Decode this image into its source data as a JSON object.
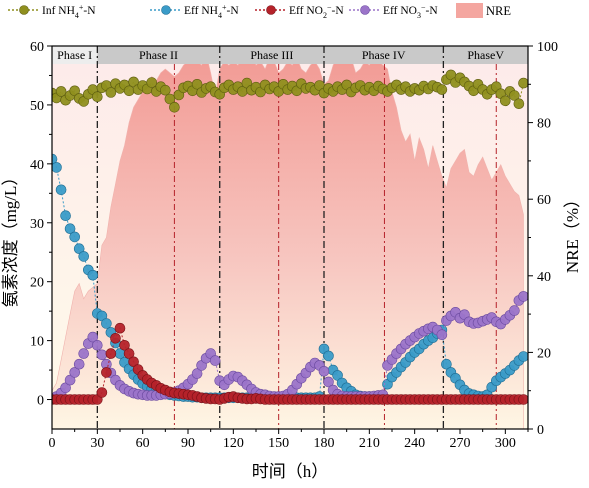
{
  "chart_data": {
    "type": "line",
    "xlabel": "时间（h）",
    "ylabel_left": "氨素浓度（mg/L）",
    "ylabel_right": "NRE（%）",
    "xlim": [
      0,
      315
    ],
    "ylim_left": [
      -5,
      60
    ],
    "ylim_right": [
      0,
      100
    ],
    "x_ticks": [
      "0",
      "30",
      "60",
      "90",
      "120",
      "150",
      "180",
      "210",
      "240",
      "270",
      "300"
    ],
    "y_left_ticks": [
      "0",
      "10",
      "20",
      "30",
      "40",
      "50",
      "60"
    ],
    "y_right_ticks": [
      "0",
      "20",
      "40",
      "60",
      "80",
      "100"
    ],
    "phases": [
      {
        "label": "Phase I",
        "start": 0,
        "end": 30
      },
      {
        "label": "Phase II",
        "start": 30,
        "end": 111
      },
      {
        "label": "Phase III",
        "start": 111,
        "end": 180
      },
      {
        "label": "Phase IV",
        "start": 180,
        "end": 259
      },
      {
        "label": "PhaseV",
        "start": 259,
        "end": 315
      }
    ],
    "phase_boundaries": [
      30,
      111,
      180,
      259
    ],
    "sub_boundaries": [
      81,
      150,
      220,
      294
    ],
    "legend": {
      "inf_nh4": "Inf NH4+-N",
      "eff_nh4": "Eff NH4+-N",
      "eff_no2": "Eff NO2−-N",
      "eff_no3": "Eff NO3−-N",
      "nre": "NRE"
    },
    "colors": {
      "inf_nh4": "#8f8f1e",
      "eff_nh4": "#3a9bc8",
      "eff_no2": "#b5222a",
      "eff_no3": "#9b74c9",
      "nre": "#f4a6a0"
    },
    "series": [
      {
        "key": "nre",
        "axis": "right",
        "x": [
          0,
          3,
          6,
          9,
          12,
          15,
          18,
          21,
          24,
          27,
          30,
          33,
          36,
          39,
          42,
          45,
          48,
          51,
          54,
          57,
          60,
          63,
          66,
          69,
          72,
          75,
          78,
          81,
          84,
          87,
          90,
          93,
          96,
          99,
          102,
          105,
          108,
          111,
          114,
          117,
          120,
          123,
          126,
          129,
          132,
          135,
          138,
          141,
          144,
          147,
          150,
          153,
          156,
          159,
          162,
          165,
          168,
          171,
          174,
          177,
          180,
          183,
          186,
          189,
          192,
          195,
          198,
          201,
          204,
          207,
          210,
          213,
          216,
          219,
          222,
          225,
          228,
          231,
          234,
          237,
          240,
          243,
          246,
          249,
          252,
          255,
          258,
          261,
          264,
          267,
          270,
          273,
          276,
          279,
          282,
          285,
          288,
          291,
          294,
          297,
          300,
          303,
          306,
          309,
          312
        ],
        "values": [
          10,
          12,
          18,
          24,
          30,
          36,
          38,
          34,
          36,
          37,
          38,
          48,
          50,
          58,
          64,
          70,
          74,
          80,
          84,
          86,
          88,
          90,
          92,
          91,
          93,
          94,
          93,
          92,
          93,
          95,
          96,
          97,
          96,
          95,
          98,
          93,
          87,
          94,
          96,
          95,
          96,
          95,
          97,
          96,
          98,
          95,
          96,
          94,
          97,
          96,
          93,
          94,
          96,
          95,
          97,
          94,
          93,
          95,
          96,
          94,
          90,
          91,
          95,
          97,
          98,
          96,
          97,
          93,
          94,
          96,
          95,
          97,
          96,
          95,
          94,
          88,
          84,
          78,
          75,
          77,
          70,
          76,
          73,
          68,
          74,
          70,
          66,
          63,
          68,
          70,
          72,
          73,
          67,
          66,
          69,
          71,
          68,
          65,
          67,
          69,
          66,
          64,
          62,
          61,
          56
        ]
      },
      {
        "key": "inf_nh4",
        "axis": "left",
        "x": [
          0,
          3,
          6,
          9,
          12,
          15,
          18,
          21,
          24,
          27,
          30,
          33,
          36,
          39,
          42,
          45,
          48,
          51,
          54,
          57,
          60,
          63,
          66,
          69,
          72,
          75,
          78,
          81,
          84,
          87,
          90,
          93,
          96,
          99,
          102,
          105,
          108,
          111,
          114,
          117,
          120,
          123,
          126,
          129,
          132,
          135,
          138,
          141,
          144,
          147,
          150,
          153,
          156,
          159,
          162,
          165,
          168,
          171,
          174,
          177,
          180,
          183,
          186,
          189,
          192,
          195,
          198,
          201,
          204,
          207,
          210,
          213,
          216,
          219,
          222,
          225,
          228,
          231,
          234,
          237,
          240,
          243,
          246,
          249,
          252,
          255,
          258,
          261,
          264,
          267,
          270,
          273,
          276,
          279,
          282,
          285,
          288,
          291,
          294,
          297,
          300,
          303,
          306,
          309,
          312
        ],
        "values": [
          52.0,
          51.2,
          52.3,
          50.8,
          51.6,
          52.4,
          51.1,
          50.6,
          51.8,
          52.6,
          51.4,
          52.9,
          53.3,
          52.1,
          53.6,
          52.8,
          53.4,
          52.4,
          53.9,
          52.6,
          53.3,
          52.7,
          53.8,
          52.3,
          53.1,
          52.5,
          51.0,
          49.6,
          51.7,
          52.9,
          53.2,
          52.4,
          53.5,
          52.1,
          52.8,
          53.1,
          52.2,
          51.8,
          52.9,
          53.4,
          52.6,
          53.1,
          52.3,
          53.7,
          52.5,
          53.0,
          52.2,
          53.4,
          52.7,
          53.1,
          52.3,
          53.5,
          52.6,
          53.2,
          52.4,
          53.6,
          52.8,
          53.0,
          52.5,
          53.3,
          52.0,
          52.8,
          52.3,
          53.1,
          52.6,
          53.4,
          52.2,
          52.9,
          53.3,
          52.5,
          53.0,
          52.4,
          53.2,
          52.7,
          52.3,
          52.9,
          53.4,
          52.6,
          53.1,
          52.3,
          52.8,
          52.5,
          53.2,
          52.7,
          53.3,
          53.0,
          52.6,
          54.3,
          55.1,
          53.8,
          54.6,
          53.9,
          53.2,
          52.4,
          53.5,
          52.6,
          51.8,
          52.6,
          53.1,
          51.9,
          50.7,
          52.3,
          51.6,
          50.2,
          53.7
        ]
      },
      {
        "key": "eff_nh4",
        "axis": "left",
        "x": [
          0,
          3,
          6,
          9,
          12,
          15,
          18,
          21,
          24,
          27,
          30,
          33,
          36,
          39,
          42,
          45,
          48,
          51,
          54,
          57,
          60,
          63,
          66,
          69,
          72,
          75,
          78,
          81,
          84,
          87,
          90,
          93,
          96,
          99,
          102,
          105,
          108,
          111,
          114,
          117,
          120,
          123,
          126,
          129,
          132,
          135,
          138,
          141,
          144,
          147,
          150,
          153,
          156,
          159,
          162,
          165,
          168,
          171,
          174,
          177,
          180,
          183,
          186,
          189,
          192,
          195,
          198,
          201,
          204,
          207,
          210,
          213,
          216,
          219,
          222,
          225,
          228,
          231,
          234,
          237,
          240,
          243,
          246,
          249,
          252,
          255,
          258,
          261,
          264,
          267,
          270,
          273,
          276,
          279,
          282,
          285,
          288,
          291,
          294,
          297,
          300,
          303,
          306,
          309,
          312
        ],
        "values": [
          40.8,
          39.4,
          35.6,
          31.2,
          29.0,
          27.6,
          25.6,
          24.3,
          22.0,
          21.1,
          14.6,
          14.2,
          12.9,
          11.4,
          9.6,
          7.8,
          6.3,
          5.2,
          4.2,
          3.4,
          2.7,
          2.2,
          1.8,
          1.5,
          1.2,
          1.0,
          0.8,
          0.7,
          0.6,
          0.5,
          0.5,
          0.4,
          0.4,
          0.3,
          0.3,
          0.3,
          0.3,
          0.3,
          0.3,
          0.3,
          0.3,
          0.3,
          0.3,
          0.3,
          0.4,
          0.3,
          0.3,
          0.3,
          0.3,
          0.3,
          0.3,
          0.3,
          0.3,
          0.3,
          0.3,
          0.3,
          0.3,
          0.3,
          0.3,
          0.5,
          8.6,
          7.4,
          5.0,
          4.1,
          2.8,
          2.0,
          1.4,
          0.8,
          0.6,
          0.5,
          0.5,
          0.4,
          0.4,
          0.4,
          2.6,
          3.8,
          4.6,
          5.5,
          6.3,
          7.2,
          8.0,
          8.6,
          9.4,
          10.0,
          10.5,
          11.2,
          11.8,
          6.0,
          4.6,
          3.6,
          2.5,
          1.6,
          1.0,
          0.8,
          0.6,
          0.5,
          0.8,
          2.1,
          3.2,
          3.8,
          4.4,
          5.0,
          5.8,
          6.6,
          7.3
        ]
      },
      {
        "key": "eff_no2",
        "axis": "left",
        "x": [
          0,
          3,
          6,
          9,
          12,
          15,
          18,
          21,
          24,
          27,
          30,
          33,
          36,
          39,
          42,
          45,
          48,
          51,
          54,
          57,
          60,
          63,
          66,
          69,
          72,
          75,
          78,
          81,
          84,
          87,
          90,
          93,
          96,
          99,
          102,
          105,
          108,
          111,
          114,
          117,
          120,
          123,
          126,
          129,
          132,
          135,
          138,
          141,
          144,
          147,
          150,
          153,
          156,
          159,
          162,
          165,
          168,
          171,
          174,
          177,
          180,
          183,
          186,
          189,
          192,
          195,
          198,
          201,
          204,
          207,
          210,
          213,
          216,
          219,
          222,
          225,
          228,
          231,
          234,
          237,
          240,
          243,
          246,
          249,
          252,
          255,
          258,
          261,
          264,
          267,
          270,
          273,
          276,
          279,
          282,
          285,
          288,
          291,
          294,
          297,
          300,
          303,
          306,
          309,
          312
        ],
        "values": [
          0,
          0,
          0,
          0,
          0,
          0,
          0,
          0,
          0,
          0,
          0,
          1.2,
          4.6,
          7.8,
          10.4,
          12.1,
          9.2,
          7.8,
          6.4,
          5.1,
          4.1,
          3.4,
          2.8,
          2.4,
          1.9,
          1.6,
          1.3,
          1.1,
          1.0,
          0.9,
          0.8,
          0.7,
          0.5,
          0.3,
          0.2,
          0.1,
          0.1,
          0,
          0.2,
          0.4,
          0.5,
          0.3,
          0.2,
          0.1,
          0.1,
          0.2,
          0.1,
          0,
          0,
          0,
          0,
          0,
          0,
          0,
          0,
          0,
          0,
          0,
          0,
          0,
          0,
          0,
          0,
          0,
          0,
          0,
          0,
          0,
          0,
          0,
          0,
          0,
          0,
          0,
          0,
          0,
          0,
          0,
          0,
          0,
          0,
          0,
          0,
          0,
          0,
          0,
          0,
          0,
          0,
          0,
          0,
          0,
          0,
          0,
          0,
          0,
          0,
          0,
          0,
          0,
          0,
          0,
          0,
          0,
          0
        ]
      },
      {
        "key": "eff_no3",
        "axis": "left",
        "x": [
          0,
          3,
          6,
          9,
          12,
          15,
          18,
          21,
          24,
          27,
          30,
          33,
          36,
          39,
          42,
          45,
          48,
          51,
          54,
          57,
          60,
          63,
          66,
          69,
          72,
          75,
          78,
          81,
          84,
          87,
          90,
          93,
          96,
          99,
          102,
          105,
          108,
          111,
          114,
          117,
          120,
          123,
          126,
          129,
          132,
          135,
          138,
          141,
          144,
          147,
          150,
          153,
          156,
          159,
          162,
          165,
          168,
          171,
          174,
          177,
          180,
          183,
          186,
          189,
          192,
          195,
          198,
          201,
          204,
          207,
          210,
          213,
          216,
          219,
          222,
          225,
          228,
          231,
          234,
          237,
          240,
          243,
          246,
          249,
          252,
          255,
          258,
          261,
          264,
          267,
          270,
          273,
          276,
          279,
          282,
          285,
          288,
          291,
          294,
          297,
          300,
          303,
          306,
          309,
          312
        ],
        "values": [
          0.2,
          0.5,
          1.1,
          2.0,
          3.3,
          4.6,
          6.0,
          7.8,
          9.5,
          10.6,
          9.2,
          7.6,
          6.0,
          4.5,
          3.3,
          2.4,
          1.8,
          1.4,
          1.1,
          0.9,
          0.8,
          0.7,
          0.7,
          0.7,
          0.8,
          0.9,
          1.0,
          1.2,
          1.5,
          2.0,
          2.6,
          3.4,
          4.4,
          5.8,
          7.0,
          7.8,
          6.6,
          3.2,
          2.5,
          3.4,
          4.0,
          3.8,
          3.2,
          2.5,
          1.8,
          1.2,
          0.9,
          0.8,
          0.6,
          0.5,
          0.5,
          0.6,
          0.9,
          1.6,
          2.6,
          3.6,
          4.5,
          5.5,
          6.2,
          5.8,
          4.8,
          3.0,
          1.6,
          0.9,
          0.6,
          0.5,
          0.5,
          0.5,
          0.5,
          0.5,
          0.5,
          0.6,
          0.7,
          0.8,
          5.8,
          6.8,
          7.8,
          8.6,
          9.4,
          10.0,
          10.6,
          11.2,
          11.6,
          12.0,
          12.3,
          11.8,
          11.0,
          13.4,
          14.2,
          14.8,
          13.8,
          14.4,
          13.2,
          12.9,
          13.0,
          13.3,
          13.6,
          13.9,
          13.2,
          12.8,
          13.6,
          14.3,
          15.1,
          16.8,
          17.5
        ]
      }
    ]
  }
}
